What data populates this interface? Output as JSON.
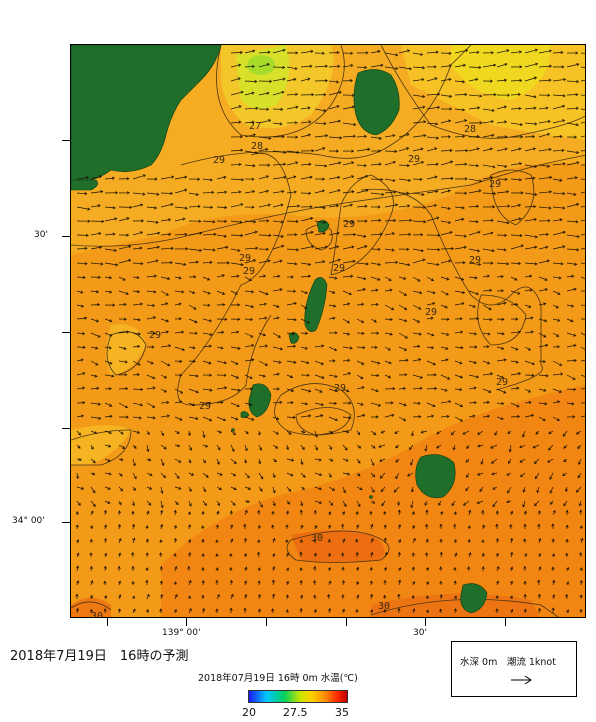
{
  "map": {
    "latitude_labels": [
      "30'",
      "34° 00'"
    ],
    "longitude_labels": [
      "139° 00'",
      "30'"
    ],
    "contour_labels": [
      "27",
      "28",
      "28",
      "29",
      "29",
      "29",
      "29",
      "29",
      "29",
      "29",
      "29",
      "29",
      "29",
      "29",
      "29",
      "29",
      "30",
      "30",
      "30"
    ]
  },
  "title": {
    "forecast": "2018年7月19日　16時の予測",
    "subtitle": "2018年07月19日 16時 0m 水温(℃)"
  },
  "colorbar": {
    "min_label": "20",
    "mid_label": "27.5",
    "max_label": "35",
    "colors": [
      "#1a1aff",
      "#00c8ff",
      "#00d060",
      "#c8e600",
      "#ffd000",
      "#ff8c00",
      "#ff2a00",
      "#c00000"
    ]
  },
  "legend": {
    "text": "水深 0m　潮流 1knot"
  },
  "colors": {
    "land": "#1f6e2a",
    "warm_sea": "#f08a10",
    "cool_sea": "#f5b820",
    "cold_patch": "#e6e020"
  }
}
